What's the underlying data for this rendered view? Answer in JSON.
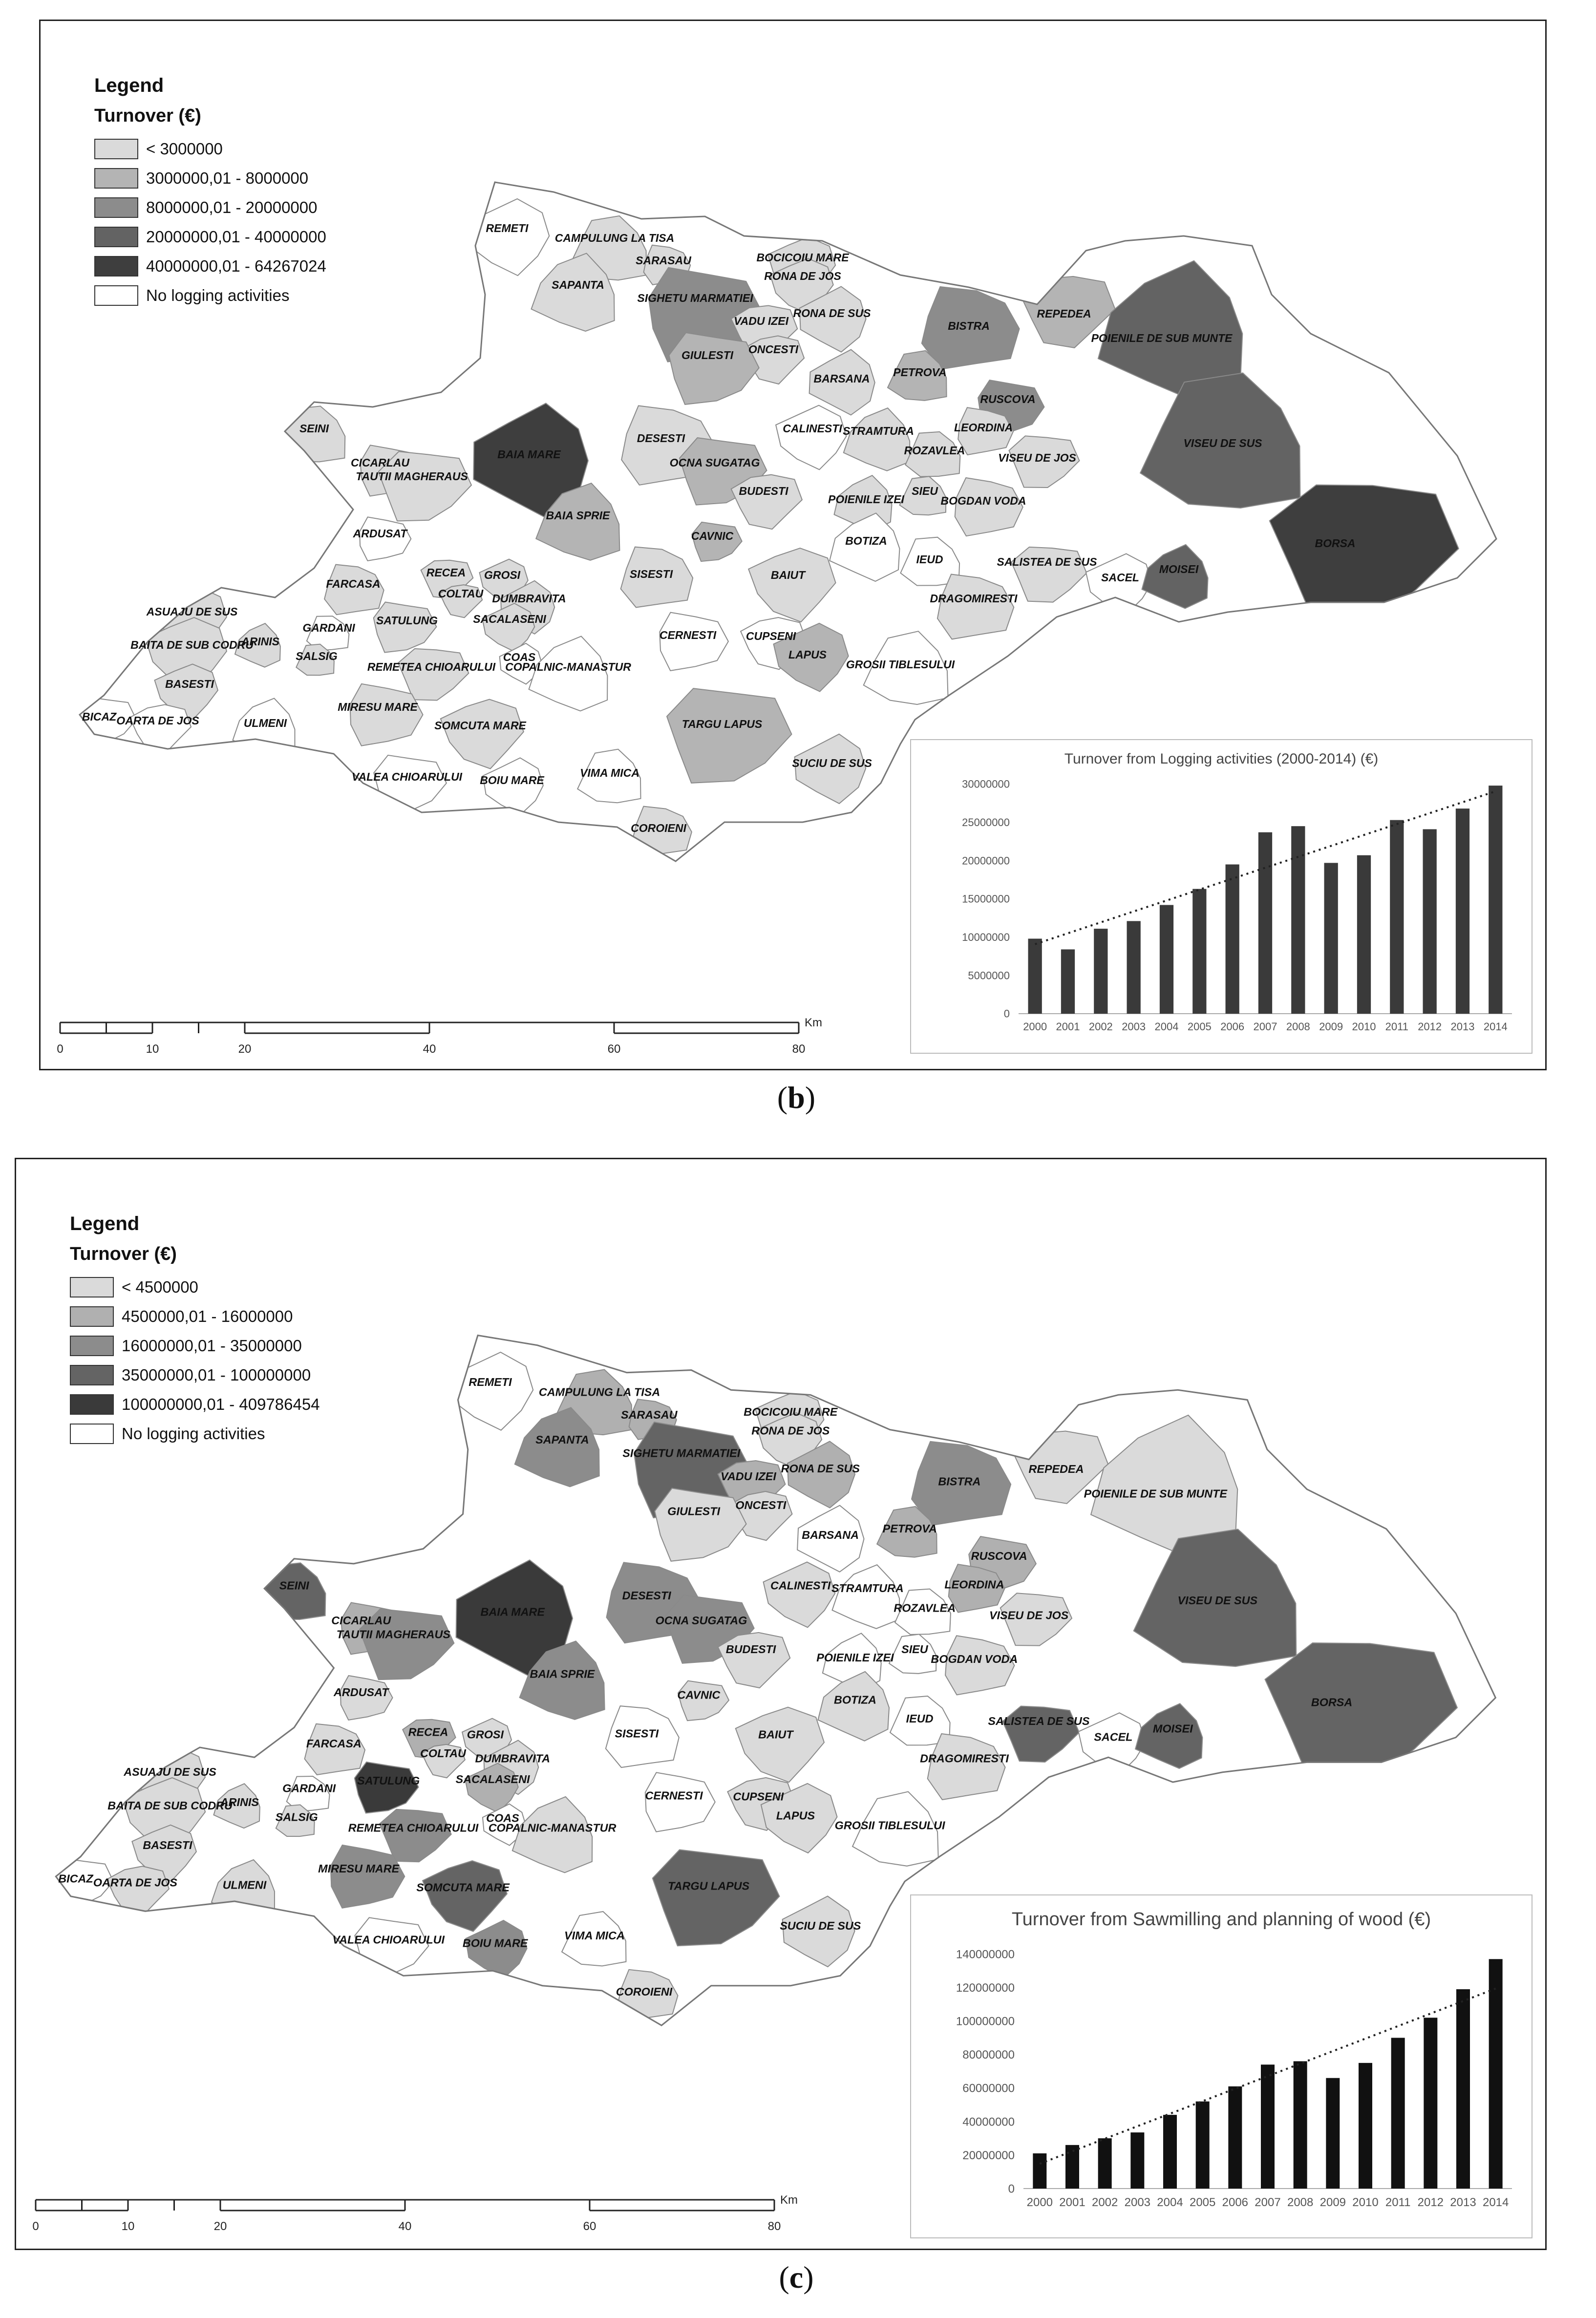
{
  "panels": [
    {
      "id": "b",
      "caption_letter": "b",
      "legend": {
        "title": "Legend",
        "subtitle": "Turnover (€)",
        "classes": [
          {
            "label": "< 3000000",
            "color": "#dadada"
          },
          {
            "label": "3000000,01 - 8000000",
            "color": "#b4b4b4"
          },
          {
            "label": "8000000,01 - 20000000",
            "color": "#8c8c8c"
          },
          {
            "label": "20000000,01 - 40000000",
            "color": "#636363"
          },
          {
            "label": "40000000,01 - 64267024",
            "color": "#3e3e3e"
          },
          {
            "label": "No logging activities",
            "color": "#ffffff"
          }
        ]
      },
      "classes_by_municipality": {
        "REMETI": 0,
        "CAMPULUNG LA TISA": 1,
        "SARASAU": 1,
        "BOCICOIU MARE": 1,
        "RONA DE JOS": 1,
        "SAPANTA": 1,
        "SIGHETU MARMATIEI": 3,
        "VADU IZEI": 1,
        "RONA DE SUS": 1,
        "ONCESTI": 1,
        "GIULESTI": 2,
        "BISTRA": 3,
        "REPEDEA": 2,
        "POIENILE DE SUB MUNTE": 4,
        "PETROVA": 2,
        "BARSANA": 1,
        "RUSCOVA": 3,
        "SEINI": 1,
        "CICARLAU": 1,
        "TAUTII MAGHERAUS": 1,
        "BAIA MARE": 5,
        "DESESTI": 1,
        "OCNA SUGATAG": 2,
        "CALINESTI": 0,
        "STRAMTURA": 1,
        "LEORDINA": 1,
        "ROZAVLEA": 1,
        "VISEU DE JOS": 1,
        "VISEU DE SUS": 4,
        "BUDESTI": 1,
        "POIENILE IZEI": 1,
        "SIEU": 1,
        "BOGDAN VODA": 1,
        "BAIA SPRIE": 2,
        "CAVNIC": 2,
        "ARDUSAT": 0,
        "FARCASA": 1,
        "RECEA": 1,
        "GROSI": 1,
        "SISESTI": 1,
        "BOTIZA": 0,
        "IEUD": 0,
        "SALISTEA DE SUS": 1,
        "SACEL": 0,
        "MOISEI": 4,
        "BORSA": 5,
        "BAIUT": 1,
        "DRAGOMIRESTI": 1,
        "COLTAU": 1,
        "DUMBRAVITA": 1,
        "SATULUNG": 1,
        "SACALASENI": 1,
        "GARDANI": 0,
        "ASUAJU DE SUS": 1,
        "BAITA DE SUB CODRU": 1,
        "SALSIG": 1,
        "ARINIS": 1,
        "BASESTI": 1,
        "COAS": 0,
        "REMETEA CHIOARULUI": 1,
        "COPALNIC-MANASTUR": 0,
        "CERNESTI": 0,
        "CUPSENI": 0,
        "LAPUS": 2,
        "GROSII TIBLESULUI": 0,
        "BICAZ": 0,
        "OARTA DE JOS": 0,
        "ULMENI": 0,
        "MIRESU MARE": 1,
        "SOMCUTA MARE": 1,
        "TARGU LAPUS": 2,
        "SUCIU DE SUS": 1,
        "VALEA CHIOARULUI": 0,
        "BOIU MARE": 0,
        "VIMA MICA": 0,
        "COROIENI": 1
      },
      "scale": {
        "ticks": [
          "0",
          "10",
          "20",
          "40",
          "60",
          "80"
        ],
        "unit": "Km"
      }
    },
    {
      "id": "c",
      "caption_letter": "c",
      "legend": {
        "title": "Legend",
        "subtitle": "Turnover (€)",
        "classes": [
          {
            "label": "< 4500000",
            "color": "#dadada"
          },
          {
            "label": "4500000,01 - 16000000",
            "color": "#b0b0b0"
          },
          {
            "label": "16000000,01 - 35000000",
            "color": "#8c8c8c"
          },
          {
            "label": "35000000,01 - 100000000",
            "color": "#646464"
          },
          {
            "label": "100000000,01 - 409786454",
            "color": "#3a3a3a"
          },
          {
            "label": "No logging activities",
            "color": "#ffffff"
          }
        ]
      },
      "classes_by_municipality": {
        "REMETI": 0,
        "CAMPULUNG LA TISA": 2,
        "SARASAU": 2,
        "BOCICOIU MARE": 1,
        "RONA DE JOS": 1,
        "SAPANTA": 3,
        "SIGHETU MARMATIEI": 4,
        "VADU IZEI": 2,
        "RONA DE SUS": 2,
        "ONCESTI": 1,
        "GIULESTI": 1,
        "BISTRA": 3,
        "REPEDEA": 1,
        "POIENILE DE SUB MUNTE": 1,
        "PETROVA": 2,
        "BARSANA": 0,
        "RUSCOVA": 2,
        "SEINI": 4,
        "CICARLAU": 2,
        "TAUTII MAGHERAUS": 3,
        "BAIA MARE": 5,
        "DESESTI": 3,
        "OCNA SUGATAG": 3,
        "CALINESTI": 1,
        "STRAMTURA": 0,
        "LEORDINA": 2,
        "ROZAVLEA": 0,
        "VISEU DE JOS": 1,
        "VISEU DE SUS": 4,
        "BUDESTI": 1,
        "POIENILE IZEI": 0,
        "SIEU": 0,
        "BOGDAN VODA": 1,
        "BAIA SPRIE": 3,
        "CAVNIC": 1,
        "ARDUSAT": 1,
        "FARCASA": 1,
        "RECEA": 2,
        "GROSI": 1,
        "SISESTI": 0,
        "BOTIZA": 1,
        "IEUD": 0,
        "SALISTEA DE SUS": 4,
        "SACEL": 0,
        "MOISEI": 4,
        "BORSA": 4,
        "BAIUT": 1,
        "DRAGOMIRESTI": 1,
        "COLTAU": 1,
        "DUMBRAVITA": 1,
        "SATULUNG": 5,
        "SACALASENI": 2,
        "GARDANI": 0,
        "ASUAJU DE SUS": 1,
        "BAITA DE SUB CODRU": 1,
        "SALSIG": 1,
        "ARINIS": 1,
        "BASESTI": 1,
        "COAS": 0,
        "REMETEA CHIOARULUI": 3,
        "COPALNIC-MANASTUR": 1,
        "CERNESTI": 0,
        "CUPSENI": 1,
        "LAPUS": 1,
        "GROSII TIBLESULUI": 0,
        "BICAZ": 0,
        "OARTA DE JOS": 1,
        "ULMENI": 1,
        "MIRESU MARE": 3,
        "SOMCUTA MARE": 4,
        "TARGU LAPUS": 4,
        "SUCIU DE SUS": 1,
        "VALEA CHIOARULUI": 0,
        "BOIU MARE": 3,
        "VIMA MICA": 0,
        "COROIENI": 1
      },
      "scale": {
        "ticks": [
          "0",
          "10",
          "20",
          "40",
          "60",
          "80"
        ],
        "unit": "Km"
      }
    }
  ],
  "chart_data": [
    {
      "type": "bar",
      "title": "Turnover from Logging activities (2000-2014) (€)",
      "categories": [
        "2000",
        "2001",
        "2002",
        "2003",
        "2004",
        "2005",
        "2006",
        "2007",
        "2008",
        "2009",
        "2010",
        "2011",
        "2012",
        "2013",
        "2014"
      ],
      "values": [
        9800000,
        8400000,
        11100000,
        12100000,
        14200000,
        16300000,
        19500000,
        23700000,
        24500000,
        19700000,
        20700000,
        25300000,
        24100000,
        26800000,
        29800000
      ],
      "yticks": [
        "0",
        "5000000",
        "10000000",
        "15000000",
        "20000000",
        "25000000",
        "30000000"
      ],
      "ylim": [
        0,
        30000000
      ],
      "trendline": "linear",
      "bar_color": "#3a3a3a"
    },
    {
      "type": "bar",
      "title": "Turnover from Sawmilling and planning of wood (€)",
      "categories": [
        "2000",
        "2001",
        "2002",
        "2003",
        "2004",
        "2005",
        "2006",
        "2007",
        "2008",
        "2009",
        "2010",
        "2011",
        "2012",
        "2013",
        "2014"
      ],
      "values": [
        21000000,
        26000000,
        30000000,
        33500000,
        44000000,
        52000000,
        61000000,
        74000000,
        76000000,
        66000000,
        75000000,
        90000000,
        102000000,
        119000000,
        137000000
      ],
      "yticks": [
        "0",
        "20000000",
        "40000000",
        "60000000",
        "80000000",
        "100000000",
        "120000000",
        "140000000"
      ],
      "ylim": [
        0,
        140000000
      ],
      "trendline": "linear",
      "bar_color": "#111111"
    }
  ]
}
